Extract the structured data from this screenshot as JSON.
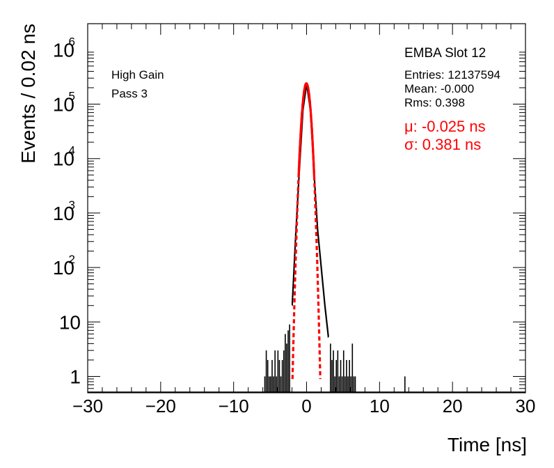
{
  "chart_data": {
    "type": "histogram",
    "xlabel": "Time [ns]",
    "ylabel": "Events / 0.02 ns",
    "xlim": [
      -30,
      30
    ],
    "ylim": [
      0.5,
      3000000
    ],
    "yscale": "log",
    "x_ticks": [
      -30,
      -20,
      -10,
      0,
      10,
      20,
      30
    ],
    "x_tick_labels": [
      "−30",
      "−20",
      "−10",
      "0",
      "10",
      "20",
      "30"
    ],
    "y_ticks": [
      {
        "value": 1,
        "base": "1",
        "exp": ""
      },
      {
        "value": 10,
        "base": "10",
        "exp": ""
      },
      {
        "value": 100,
        "base": "10",
        "exp": "2"
      },
      {
        "value": 1000,
        "base": "10",
        "exp": "3"
      },
      {
        "value": 10000,
        "base": "10",
        "exp": "4"
      },
      {
        "value": 100000,
        "base": "10",
        "exp": "5"
      },
      {
        "value": 1000000,
        "base": "10",
        "exp": "6"
      }
    ],
    "labels": {
      "gain": "High Gain",
      "pass": "Pass 3",
      "slot": "EMBA Slot 12",
      "entries": "Entries: 12137594",
      "mean": "Mean: -0.000",
      "rms": "Rms: 0.398",
      "fit_mu": "μ: -0.025 ns",
      "fit_sigma": "σ: 0.381 ns"
    },
    "fit": {
      "mu": -0.025,
      "sigma": 0.381,
      "peak": 240000,
      "color": "#ff0000",
      "dashed_range_sigma": 5
    },
    "histogram_color": "#000000",
    "histogram_profile": [
      {
        "x": -2.0,
        "y": 18
      },
      {
        "x": -1.5,
        "y": 400
      },
      {
        "x": -1.0,
        "y": 6000
      },
      {
        "x": -0.5,
        "y": 80000
      },
      {
        "x": 0.0,
        "y": 240000
      },
      {
        "x": 0.5,
        "y": 80000
      },
      {
        "x": 1.0,
        "y": 6000
      },
      {
        "x": 1.5,
        "y": 500
      },
      {
        "x": 2.0,
        "y": 100
      },
      {
        "x": 2.5,
        "y": 20
      },
      {
        "x": 3.0,
        "y": 5
      }
    ],
    "sparse_bins": [
      {
        "x": -5.8,
        "y": 1
      },
      {
        "x": -5.6,
        "y": 3
      },
      {
        "x": -5.4,
        "y": 2
      },
      {
        "x": -5.2,
        "y": 1
      },
      {
        "x": -5.0,
        "y": 1
      },
      {
        "x": -4.8,
        "y": 2
      },
      {
        "x": -4.6,
        "y": 1
      },
      {
        "x": -4.4,
        "y": 3
      },
      {
        "x": -4.2,
        "y": 1
      },
      {
        "x": -4.0,
        "y": 3
      },
      {
        "x": -3.8,
        "y": 2
      },
      {
        "x": -3.6,
        "y": 1
      },
      {
        "x": -3.4,
        "y": 2
      },
      {
        "x": -3.2,
        "y": 3
      },
      {
        "x": -3.0,
        "y": 6
      },
      {
        "x": -2.8,
        "y": 4
      },
      {
        "x": -2.6,
        "y": 7
      },
      {
        "x": -2.4,
        "y": 9
      },
      {
        "x": 3.2,
        "y": 4
      },
      {
        "x": 3.4,
        "y": 2
      },
      {
        "x": 3.6,
        "y": 3
      },
      {
        "x": 3.8,
        "y": 1
      },
      {
        "x": 4.0,
        "y": 2
      },
      {
        "x": 4.2,
        "y": 3
      },
      {
        "x": 4.4,
        "y": 1
      },
      {
        "x": 4.6,
        "y": 2
      },
      {
        "x": 4.8,
        "y": 1
      },
      {
        "x": 5.0,
        "y": 3
      },
      {
        "x": 5.2,
        "y": 1
      },
      {
        "x": 5.4,
        "y": 2
      },
      {
        "x": 5.6,
        "y": 1
      },
      {
        "x": 5.8,
        "y": 2
      },
      {
        "x": 6.0,
        "y": 1
      },
      {
        "x": 6.2,
        "y": 4
      },
      {
        "x": 6.4,
        "y": 1
      },
      {
        "x": 6.6,
        "y": 1
      },
      {
        "x": 13.4,
        "y": 1
      }
    ]
  }
}
